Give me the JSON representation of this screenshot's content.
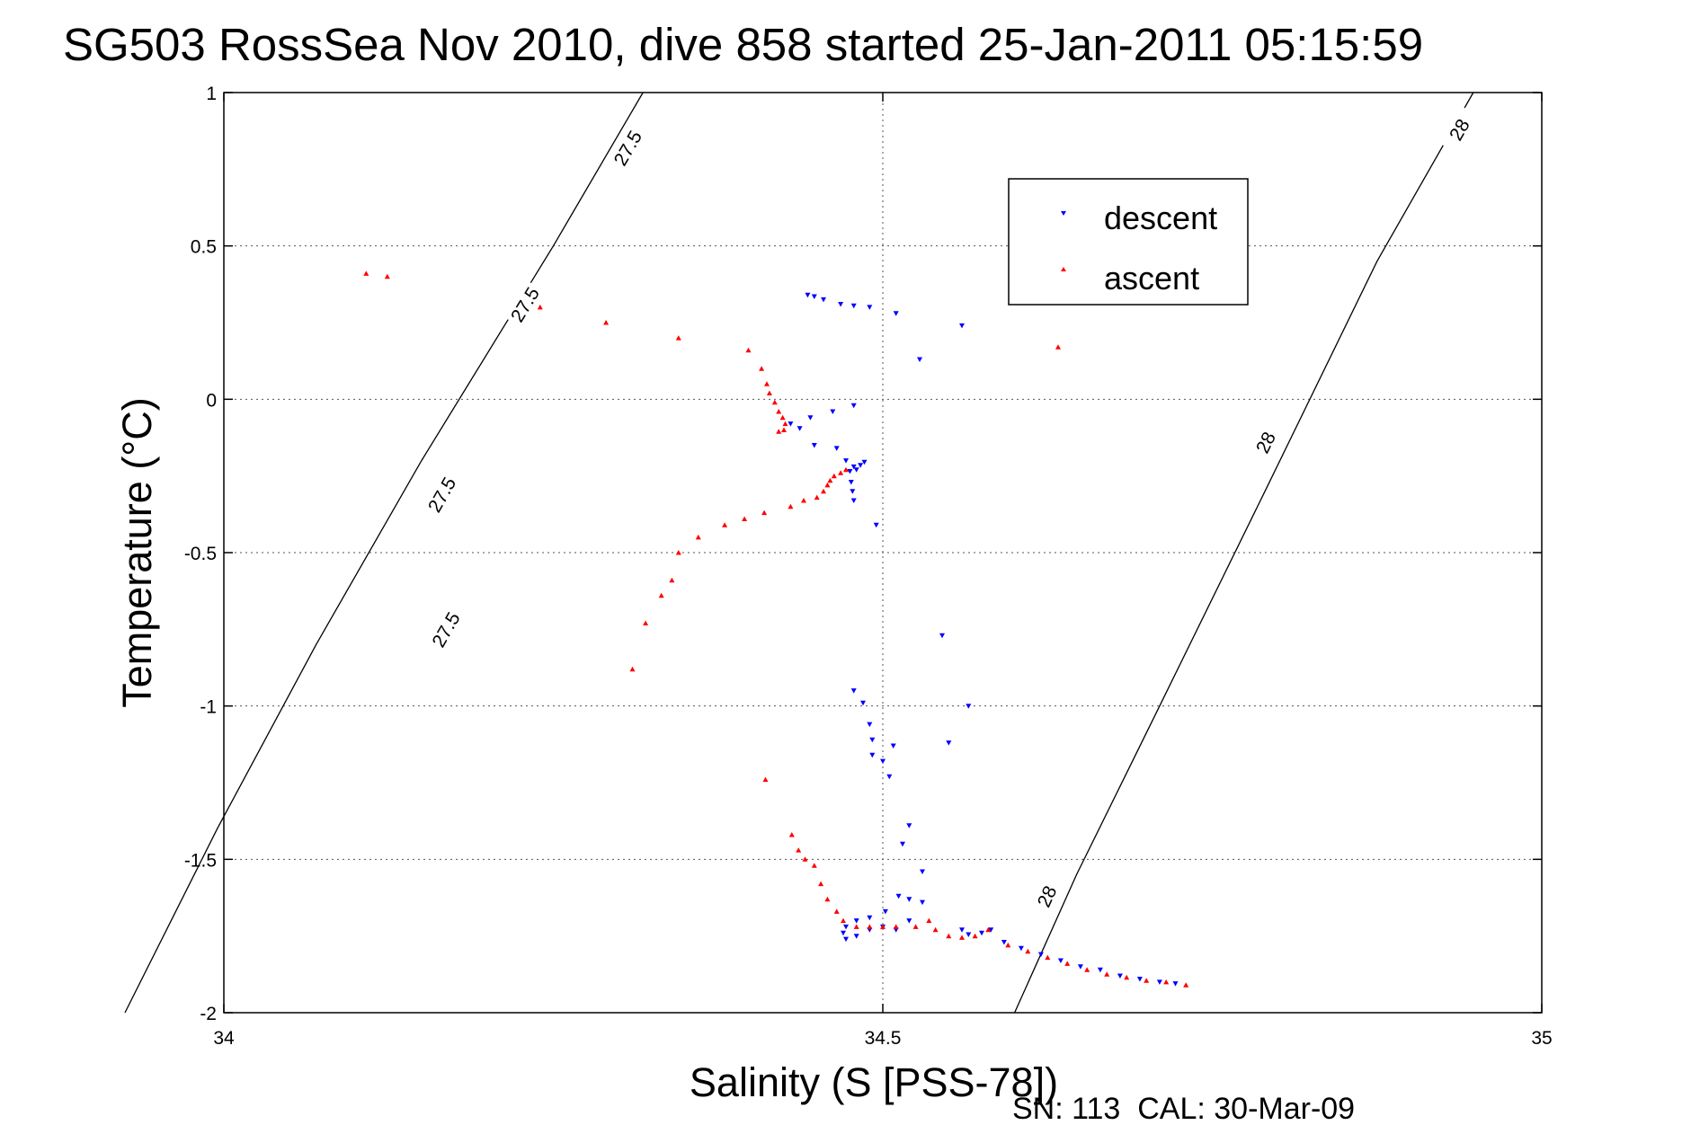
{
  "chart_data": {
    "type": "scatter",
    "title": "SG503 RossSea Nov 2010, dive 858 started 25-Jan-2011 05:15:59",
    "xlabel": "Salinity (S [PSS-78])",
    "ylabel": "Temperature (°C)",
    "xlim": [
      34,
      35
    ],
    "ylim": [
      -2,
      1
    ],
    "xticks": [
      "34",
      "34.5",
      "35"
    ],
    "yticks": [
      "1",
      "0.5",
      "0",
      "-0.5",
      "-1",
      "-1.5",
      "-2"
    ],
    "grid": true,
    "legend_position": "top-right",
    "footer": "SN: 113  CAL: 30-Mar-09",
    "isopycnals": [
      {
        "label": "27.5",
        "points": [
          [
            34.318,
            1.0
          ],
          [
            34.25,
            0.5
          ],
          [
            34.15,
            -0.2
          ],
          [
            34.07,
            -0.8
          ],
          [
            33.995,
            -1.4
          ],
          [
            33.925,
            -2.0
          ]
        ],
        "label_positions": [
          [
            34.306,
            0.82
          ],
          [
            34.228,
            0.31
          ],
          [
            34.165,
            -0.31
          ],
          [
            34.168,
            -0.75
          ]
        ]
      },
      {
        "label": "28",
        "points": [
          [
            34.948,
            1.0
          ],
          [
            34.875,
            0.45
          ],
          [
            34.79,
            -0.3
          ],
          [
            34.71,
            -1.0
          ],
          [
            34.647,
            -1.55
          ],
          [
            34.6,
            -2.0
          ]
        ],
        "label_positions": [
          [
            34.937,
            0.88
          ],
          [
            34.79,
            -0.14
          ],
          [
            34.624,
            -1.62
          ]
        ]
      }
    ],
    "series": [
      {
        "name": "descent",
        "color": "#0000ff",
        "marker": "triangle-down",
        "points": [
          [
            34.443,
            0.34
          ],
          [
            34.448,
            0.335
          ],
          [
            34.455,
            0.325
          ],
          [
            34.468,
            0.31
          ],
          [
            34.478,
            0.305
          ],
          [
            34.49,
            0.3
          ],
          [
            34.51,
            0.28
          ],
          [
            34.56,
            0.24
          ],
          [
            34.528,
            0.13
          ],
          [
            34.43,
            -0.08
          ],
          [
            34.437,
            -0.095
          ],
          [
            34.445,
            -0.06
          ],
          [
            34.462,
            -0.04
          ],
          [
            34.478,
            -0.02
          ],
          [
            34.448,
            -0.15
          ],
          [
            34.465,
            -0.16
          ],
          [
            34.472,
            -0.2
          ],
          [
            34.478,
            -0.22
          ],
          [
            34.48,
            -0.23
          ],
          [
            34.483,
            -0.215
          ],
          [
            34.486,
            -0.205
          ],
          [
            34.475,
            -0.235
          ],
          [
            34.476,
            -0.27
          ],
          [
            34.477,
            -0.3
          ],
          [
            34.478,
            -0.33
          ],
          [
            34.495,
            -0.41
          ],
          [
            34.545,
            -0.77
          ],
          [
            34.478,
            -0.95
          ],
          [
            34.485,
            -0.99
          ],
          [
            34.49,
            -1.06
          ],
          [
            34.492,
            -1.11
          ],
          [
            34.492,
            -1.16
          ],
          [
            34.508,
            -1.13
          ],
          [
            34.55,
            -1.12
          ],
          [
            34.565,
            -1.0
          ],
          [
            34.505,
            -1.23
          ],
          [
            34.5,
            -1.18
          ],
          [
            34.52,
            -1.39
          ],
          [
            34.515,
            -1.45
          ],
          [
            34.53,
            -1.54
          ],
          [
            34.512,
            -1.62
          ],
          [
            34.52,
            -1.63
          ],
          [
            34.53,
            -1.64
          ],
          [
            34.502,
            -1.67
          ],
          [
            34.49,
            -1.69
          ],
          [
            34.48,
            -1.7
          ],
          [
            34.472,
            -1.72
          ],
          [
            34.47,
            -1.74
          ],
          [
            34.472,
            -1.76
          ],
          [
            34.48,
            -1.75
          ],
          [
            34.49,
            -1.73
          ],
          [
            34.5,
            -1.72
          ],
          [
            34.51,
            -1.73
          ],
          [
            34.52,
            -1.7
          ],
          [
            34.56,
            -1.73
          ],
          [
            34.565,
            -1.745
          ],
          [
            34.575,
            -1.74
          ],
          [
            34.582,
            -1.73
          ],
          [
            34.592,
            -1.77
          ],
          [
            34.605,
            -1.79
          ],
          [
            34.62,
            -1.81
          ],
          [
            34.635,
            -1.83
          ],
          [
            34.65,
            -1.85
          ],
          [
            34.665,
            -1.86
          ],
          [
            34.68,
            -1.88
          ],
          [
            34.695,
            -1.89
          ],
          [
            34.71,
            -1.9
          ],
          [
            34.722,
            -1.905
          ]
        ]
      },
      {
        "name": "ascent",
        "color": "#ff0000",
        "marker": "triangle-up",
        "points": [
          [
            34.108,
            0.41
          ],
          [
            34.124,
            0.4
          ],
          [
            34.24,
            0.3
          ],
          [
            34.29,
            0.25
          ],
          [
            34.345,
            0.2
          ],
          [
            34.398,
            0.16
          ],
          [
            34.408,
            0.1
          ],
          [
            34.412,
            0.05
          ],
          [
            34.414,
            0.02
          ],
          [
            34.418,
            -0.01
          ],
          [
            34.421,
            -0.04
          ],
          [
            34.424,
            -0.06
          ],
          [
            34.426,
            -0.08
          ],
          [
            34.425,
            -0.1
          ],
          [
            34.421,
            -0.105
          ],
          [
            34.633,
            0.17
          ],
          [
            34.472,
            -0.23
          ],
          [
            34.468,
            -0.24
          ],
          [
            34.463,
            -0.25
          ],
          [
            34.46,
            -0.265
          ],
          [
            34.458,
            -0.28
          ],
          [
            34.455,
            -0.3
          ],
          [
            34.45,
            -0.32
          ],
          [
            34.44,
            -0.33
          ],
          [
            34.43,
            -0.35
          ],
          [
            34.41,
            -0.37
          ],
          [
            34.395,
            -0.39
          ],
          [
            34.38,
            -0.41
          ],
          [
            34.36,
            -0.45
          ],
          [
            34.345,
            -0.5
          ],
          [
            34.34,
            -0.59
          ],
          [
            34.332,
            -0.64
          ],
          [
            34.32,
            -0.73
          ],
          [
            34.31,
            -0.88
          ],
          [
            34.411,
            -1.24
          ],
          [
            34.431,
            -1.42
          ],
          [
            34.436,
            -1.47
          ],
          [
            34.441,
            -1.5
          ],
          [
            34.448,
            -1.52
          ],
          [
            34.453,
            -1.58
          ],
          [
            34.458,
            -1.63
          ],
          [
            34.465,
            -1.67
          ],
          [
            34.47,
            -1.7
          ],
          [
            34.48,
            -1.72
          ],
          [
            34.49,
            -1.72
          ],
          [
            34.5,
            -1.72
          ],
          [
            34.51,
            -1.72
          ],
          [
            34.525,
            -1.72
          ],
          [
            34.535,
            -1.7
          ],
          [
            34.54,
            -1.73
          ],
          [
            34.55,
            -1.75
          ],
          [
            34.56,
            -1.755
          ],
          [
            34.57,
            -1.75
          ],
          [
            34.58,
            -1.73
          ],
          [
            34.595,
            -1.78
          ],
          [
            34.61,
            -1.8
          ],
          [
            34.625,
            -1.82
          ],
          [
            34.64,
            -1.84
          ],
          [
            34.655,
            -1.86
          ],
          [
            34.67,
            -1.875
          ],
          [
            34.685,
            -1.885
          ],
          [
            34.7,
            -1.895
          ],
          [
            34.715,
            -1.9
          ],
          [
            34.73,
            -1.91
          ]
        ]
      }
    ]
  }
}
